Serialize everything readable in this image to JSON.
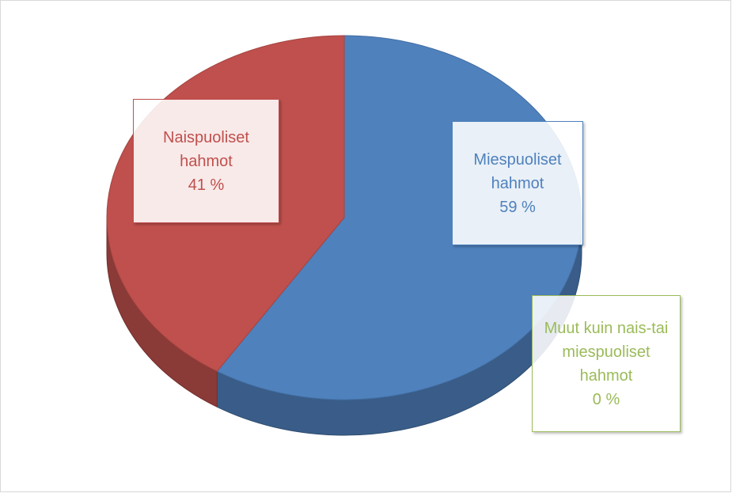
{
  "chart_data": {
    "type": "pie",
    "categories": [
      "Miespuoliset hahmot",
      "Naispuoliset hahmot",
      "Muut kuin nais-tai miespuoliset hahmot"
    ],
    "values": [
      59,
      41,
      0
    ],
    "value_labels": [
      "59 %",
      "41 %",
      "0 %"
    ],
    "colors": [
      "#4f81bd",
      "#c0504d",
      "#9bbb59"
    ]
  }
}
